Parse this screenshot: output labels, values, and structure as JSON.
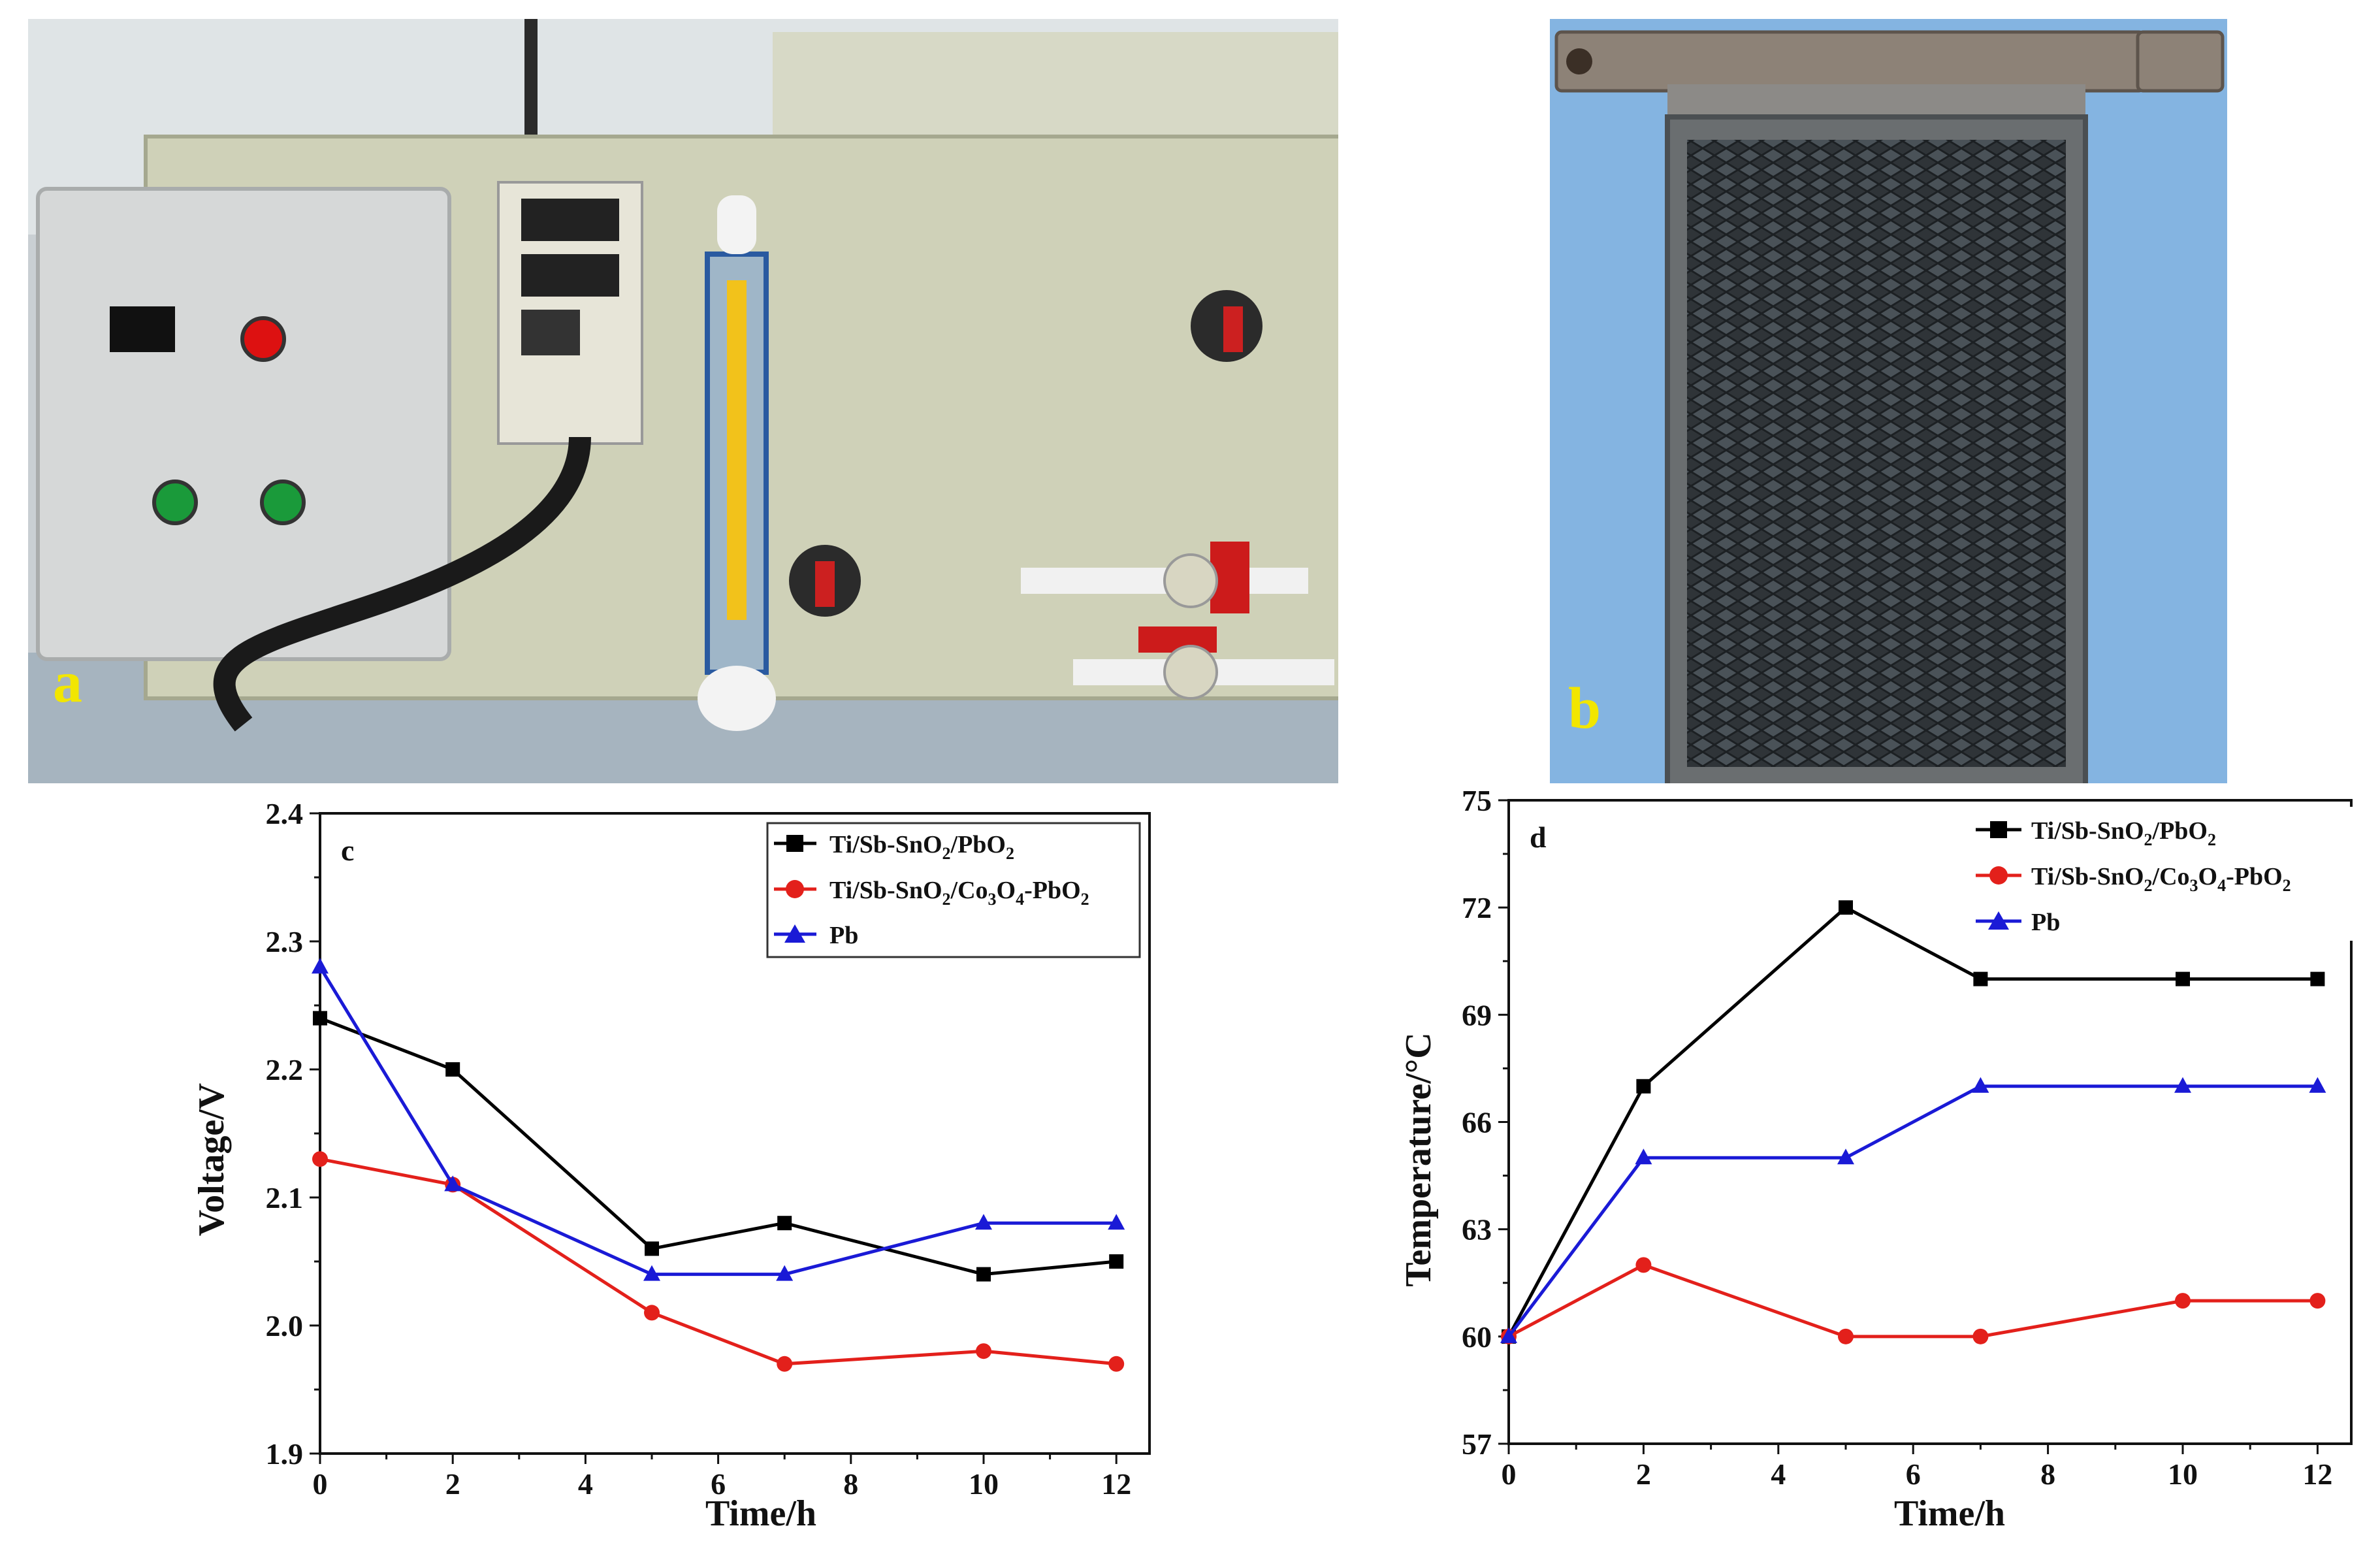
{
  "panels": {
    "a": {
      "letter": "a"
    },
    "b": {
      "letter": "b"
    },
    "c": {
      "letter": "c"
    },
    "d": {
      "letter": "d"
    }
  },
  "colors": {
    "black_series": "#000000",
    "red_series": "#e3201b",
    "blue_series": "#1a1ad6",
    "photo_a_background": "#b9bfc2",
    "photo_b_background": "#7fb1df",
    "panel_letter": "#f2e600"
  },
  "chart_data": [
    {
      "id": "c",
      "type": "line",
      "xlabel": "Time/h",
      "ylabel": "Voltage/V",
      "xlim": [
        0,
        12.5
      ],
      "ylim": [
        1.9,
        2.4
      ],
      "xticks": [
        0,
        2,
        4,
        6,
        8,
        10,
        12
      ],
      "yticks": [
        1.9,
        2.0,
        2.1,
        2.2,
        2.3,
        2.4
      ],
      "ytick_labels": [
        "1.9",
        "2.0",
        "2.1",
        "2.2",
        "2.3",
        "2.4"
      ],
      "legend_position": "top-right",
      "x": [
        0,
        2,
        5,
        7,
        10,
        12
      ],
      "series": [
        {
          "name": "Ti/Sb-SnO2/PbO2",
          "marker": "square",
          "color": "#000000",
          "values": [
            2.24,
            2.2,
            2.06,
            2.08,
            2.04,
            2.05
          ]
        },
        {
          "name": "Ti/Sb-SnO2/Co3O4-PbO2",
          "marker": "circle",
          "color": "#e3201b",
          "values": [
            2.13,
            2.11,
            2.01,
            1.97,
            1.98,
            1.97
          ]
        },
        {
          "name": "Pb",
          "marker": "triangle",
          "color": "#1a1ad6",
          "values": [
            2.28,
            2.11,
            2.04,
            2.04,
            2.08,
            2.08
          ]
        }
      ]
    },
    {
      "id": "d",
      "type": "line",
      "xlabel": "Time/h",
      "ylabel": "Temperature/°C",
      "xlim": [
        0,
        12.5
      ],
      "ylim": [
        57,
        75
      ],
      "xticks": [
        0,
        2,
        4,
        6,
        8,
        10,
        12
      ],
      "yticks": [
        57,
        60,
        63,
        66,
        69,
        72,
        75
      ],
      "ytick_labels": [
        "57",
        "60",
        "63",
        "66",
        "69",
        "72",
        "75"
      ],
      "legend_position": "top-right",
      "x": [
        0,
        2,
        5,
        7,
        10,
        12
      ],
      "series": [
        {
          "name": "Ti/Sb-SnO2/PbO2",
          "marker": "square",
          "color": "#000000",
          "values": [
            60,
            67,
            72,
            70,
            70,
            70
          ]
        },
        {
          "name": "Ti/Sb-SnO2/Co3O4-PbO2",
          "marker": "circle",
          "color": "#e3201b",
          "values": [
            60,
            62,
            60,
            60,
            61,
            61
          ]
        },
        {
          "name": "Pb",
          "marker": "triangle",
          "color": "#1a1ad6",
          "values": [
            60,
            65,
            65,
            67,
            67,
            67
          ]
        }
      ]
    }
  ]
}
